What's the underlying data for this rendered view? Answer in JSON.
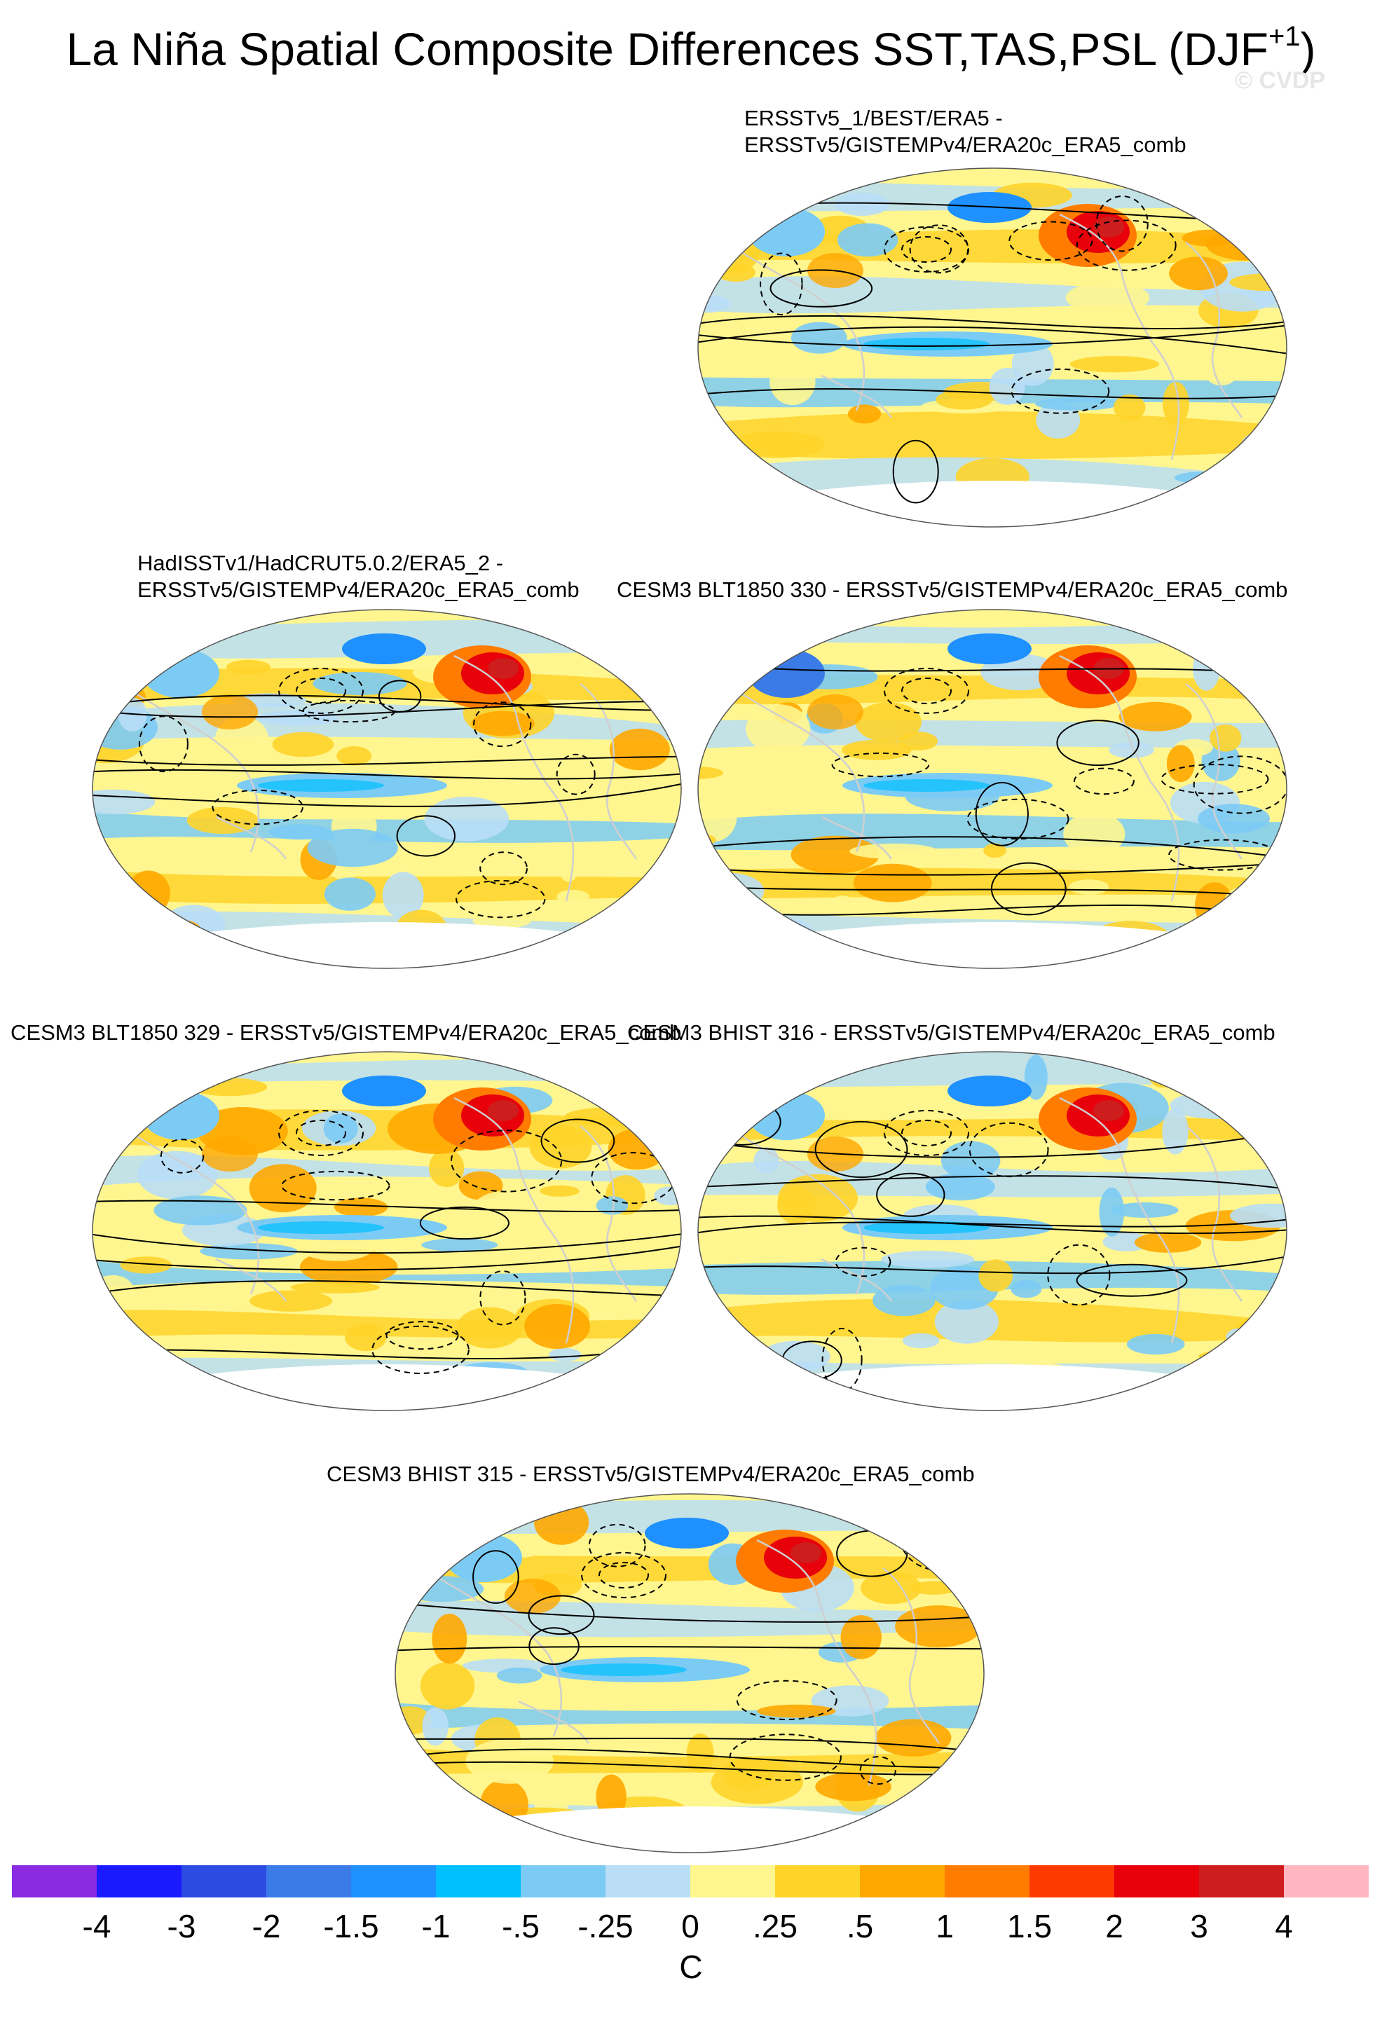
{
  "title": {
    "main": "La Niña Spatial Composite Differences SST,TAS,PSL (DJF",
    "sup": "+1",
    "close": ")"
  },
  "watermark": "© CVDP",
  "panels": [
    {
      "id": "p1",
      "line1": "ERSSTv5_1/BEST/ERA5 -",
      "line2": "ERSSTv5/GISTEMPv4/ERA20c_ERA5_comb"
    },
    {
      "id": "p2",
      "line1": "HadISSTv1/HadCRUT5.0.2/ERA5_2 -",
      "line2": "ERSSTv5/GISTEMPv4/ERA20c_ERA5_comb"
    },
    {
      "id": "p3",
      "line1": "CESM3 BLT1850 330 - ERSSTv5/GISTEMPv4/ERA20c_ERA5_comb"
    },
    {
      "id": "p4",
      "line1": "CESM3 BLT1850 329 - ERSSTv5/GISTEMPv4/ERA20c_ERA5_comb"
    },
    {
      "id": "p5",
      "line1": "CESM3 BHIST 316 - ERSSTv5/GISTEMPv4/ERA20c_ERA5_comb"
    },
    {
      "id": "p6",
      "line1": "CESM3 BHIST 315 - ERSSTv5/GISTEMPv4/ERA20c_ERA5_comb"
    }
  ],
  "colorbar": {
    "unit": "C",
    "labels": [
      "-4",
      "-3",
      "-2",
      "-1.5",
      "-1",
      "-.5",
      "-.25",
      "0",
      ".25",
      ".5",
      "1",
      "1.5",
      "2",
      "3",
      "4"
    ],
    "colors": [
      "#8a2be2",
      "#1a1aff",
      "#2c4be0",
      "#3b7be8",
      "#1e90ff",
      "#00bfff",
      "#7ccbf5",
      "#b9def6",
      "#fff68f",
      "#ffd42a",
      "#ffa800",
      "#ff7c00",
      "#ff3a00",
      "#e8000b",
      "#cd1d1d",
      "#ffb6c1"
    ]
  }
}
